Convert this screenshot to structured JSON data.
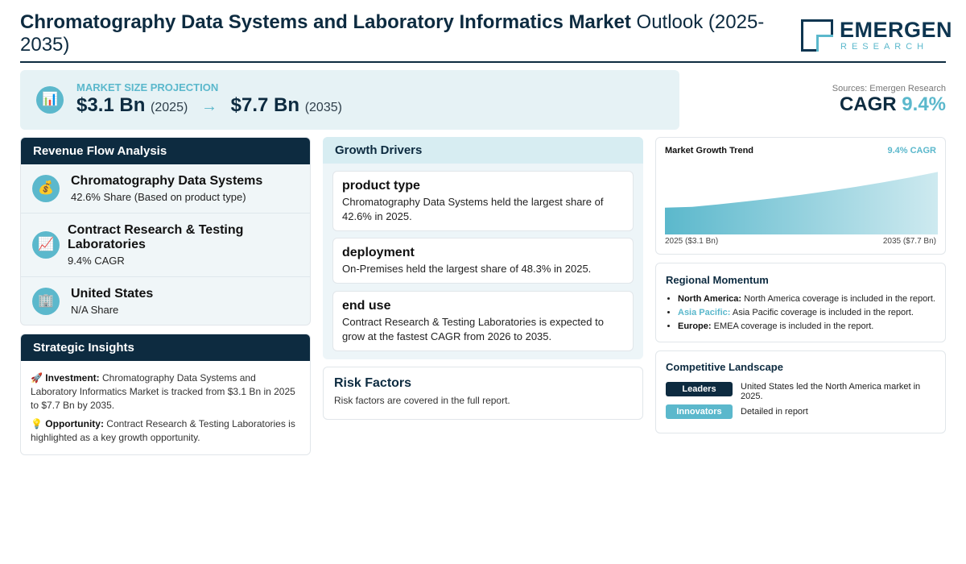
{
  "header": {
    "title_bold": "Chromatography Data Systems and Laboratory Informatics Market",
    "title_rest": " Outlook (2025-2035)",
    "logo_name": "EMERGEN",
    "logo_sub": "RESEARCH"
  },
  "projection": {
    "icon": "bar-chart-icon",
    "label": "MARKET SIZE PROJECTION",
    "start_value": "$3.1 Bn",
    "start_year": "(2025)",
    "arrow": "→",
    "end_value": "$7.7 Bn",
    "end_year": "(2035)"
  },
  "summary": {
    "sources": "Sources: Emergen Research",
    "cagr_label": "CAGR",
    "cagr_value": "9.4%"
  },
  "revenue_flow": {
    "title": "Revenue Flow Analysis",
    "items": [
      {
        "icon": "money-bag-icon",
        "glyph": "💰",
        "name": "Chromatography Data Systems",
        "sub": "42.6% Share (Based on product type)"
      },
      {
        "icon": "trend-chart-icon",
        "glyph": "📈",
        "name": "Contract Research & Testing Laboratories",
        "sub": "9.4% CAGR"
      },
      {
        "icon": "building-icon",
        "glyph": "🏢",
        "name": "United States",
        "sub": "N/A Share"
      }
    ]
  },
  "strategic": {
    "title": "Strategic Insights",
    "investment_icon": "🚀",
    "investment_label": "Investment:",
    "investment_text": " Chromatography Data Systems and Laboratory Informatics Market is tracked from $3.1 Bn in 2025 to $7.7 Bn by 2035.",
    "opportunity_icon": "💡",
    "opportunity_label": "Opportunity:",
    "opportunity_text": " Contract Research & Testing Laboratories is highlighted as a key growth opportunity."
  },
  "drivers": {
    "title": "Growth Drivers",
    "items": [
      {
        "title": "product type",
        "text": "Chromatography Data Systems held the largest share of 42.6% in 2025."
      },
      {
        "title": "deployment",
        "text": "On-Premises held the largest share of 48.3% in 2025."
      },
      {
        "title": "end use",
        "text": "Contract Research & Testing Laboratories is expected to grow at the fastest CAGR from 2026 to 2035."
      }
    ]
  },
  "risk": {
    "title": "Risk Factors",
    "text": "Risk factors are covered in the full report."
  },
  "trend": {
    "title": "Market Growth Trend",
    "cagr": "9.4% CAGR",
    "start_label": "2025 ($3.1 Bn)",
    "end_label": "2035 ($7.7 Bn)",
    "accent": "#5bb8cc"
  },
  "chart_data": {
    "type": "area",
    "title": "Market Growth Trend",
    "x": [
      2025,
      2035
    ],
    "series": [
      {
        "values": [
          3.1,
          7.7
        ]
      }
    ],
    "xlabel": "",
    "ylabel": ""
  },
  "regional": {
    "title": "Regional Momentum",
    "items": [
      {
        "region": "North America:",
        "text": " North America coverage is included in the report."
      },
      {
        "region": "Asia Pacific:",
        "text": " Asia Pacific coverage is included in the report."
      },
      {
        "region": "Europe:",
        "text": " EMEA coverage is included in the report."
      }
    ]
  },
  "competitive": {
    "title": "Competitive Landscape",
    "leaders_label": "Leaders",
    "leaders_text": "United States led the North America market in 2025.",
    "innovators_label": "Innovators",
    "innovators_text": "Detailed in report"
  }
}
